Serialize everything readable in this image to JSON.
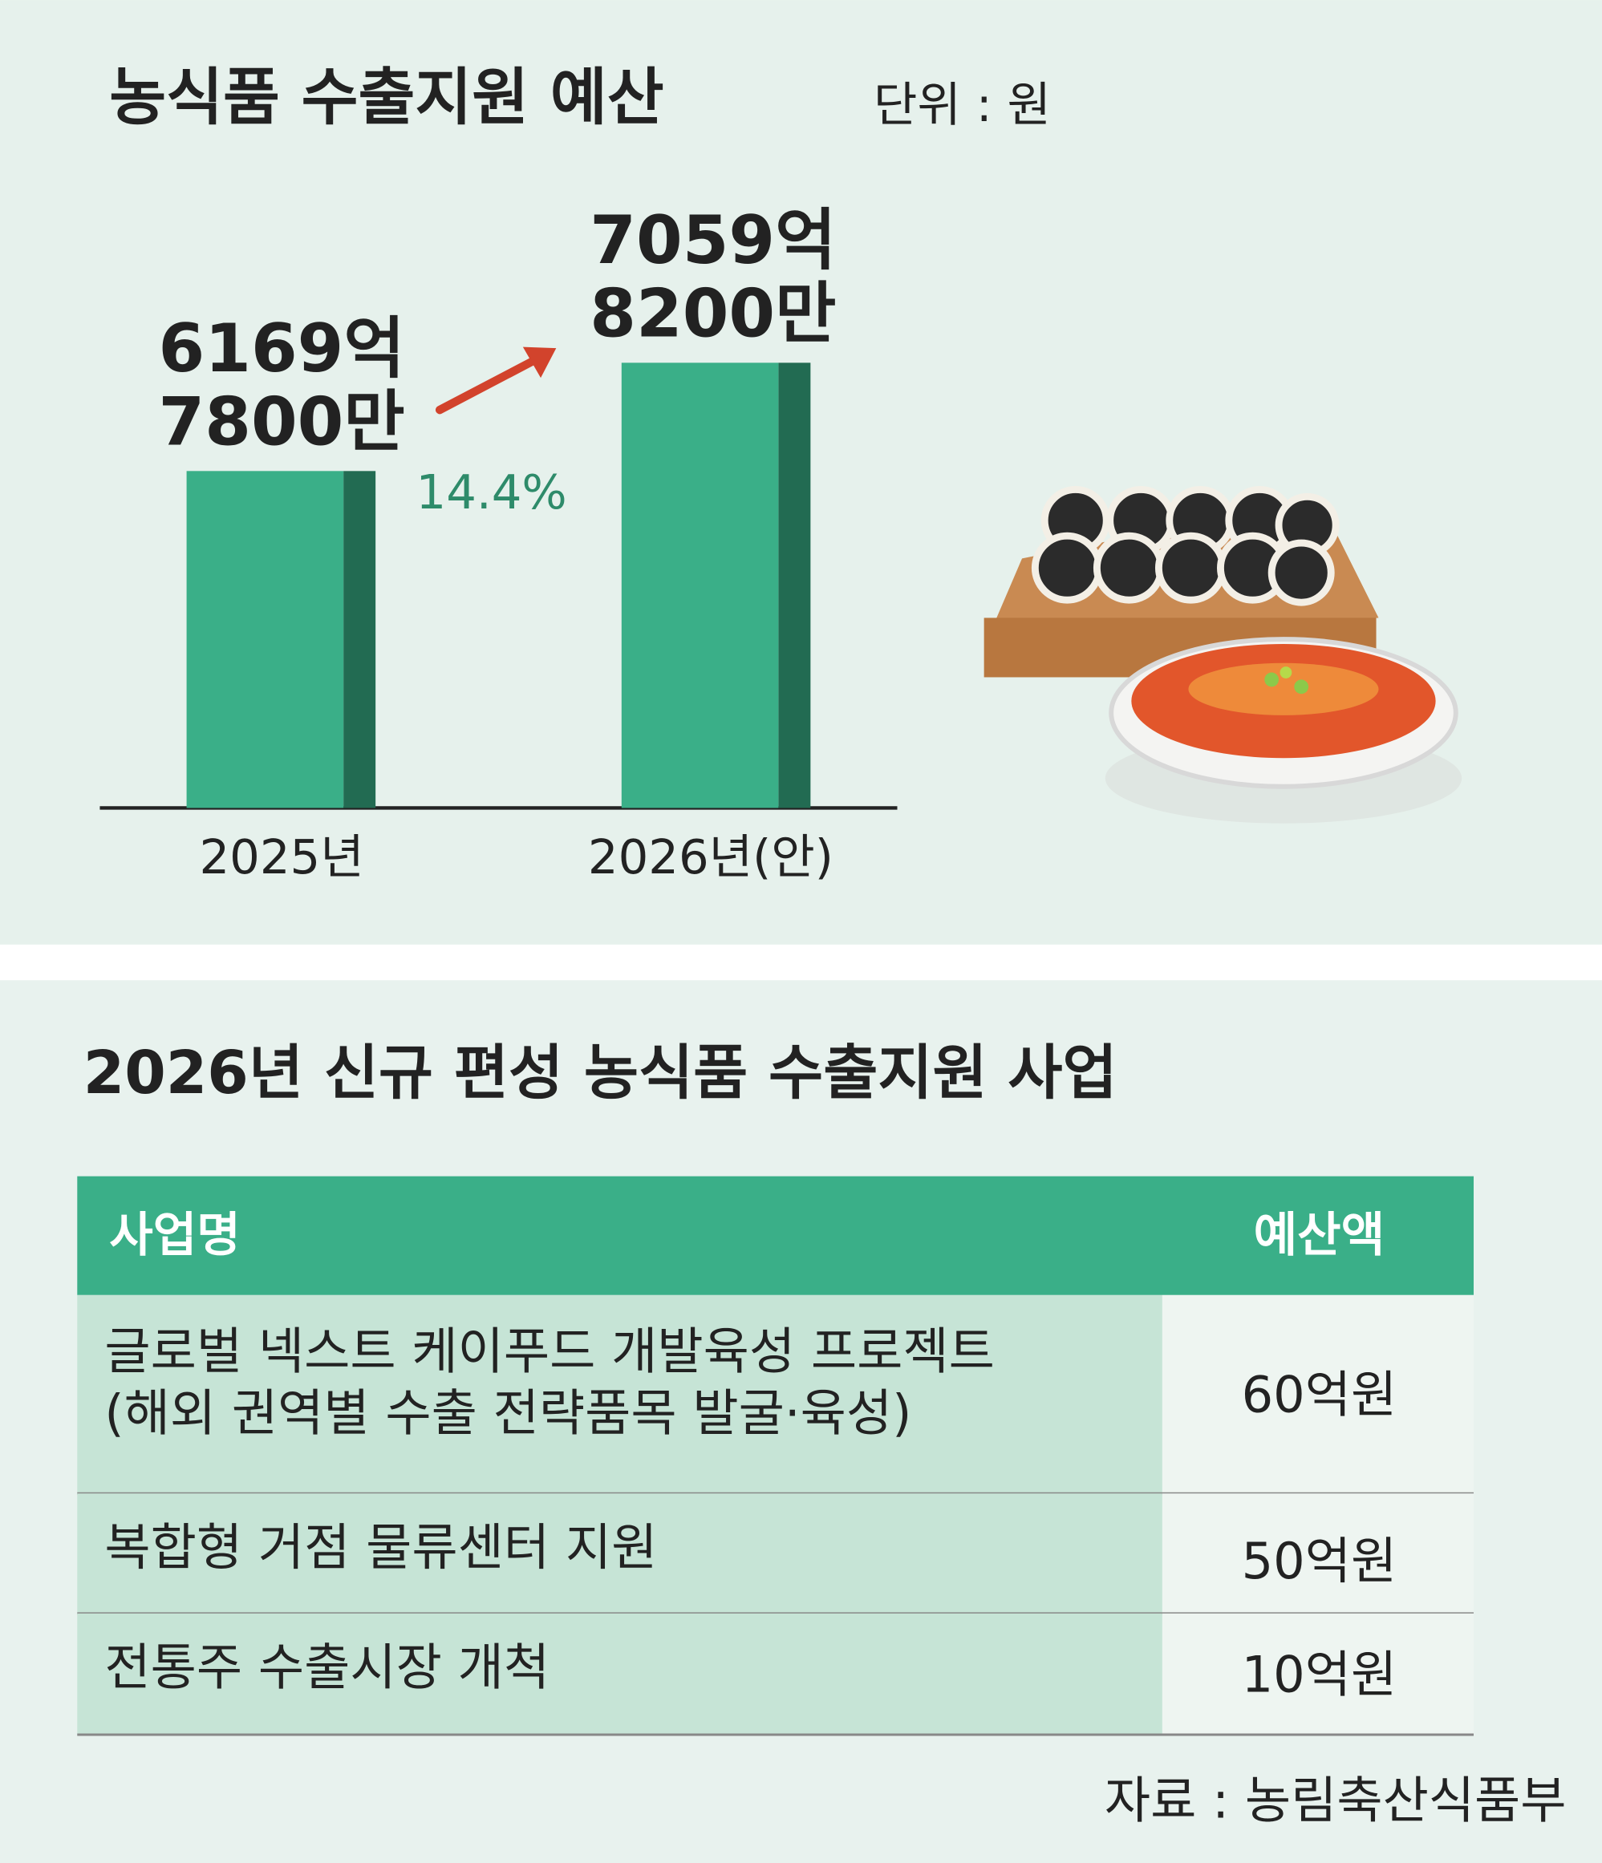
{
  "chart_data": {
    "type": "bar",
    "title": "농식품 수출지원 예산",
    "unit": "단위 : 원",
    "categories": [
      "2025년",
      "2026년(안)"
    ],
    "values": [
      616978000000,
      705982000000
    ],
    "value_labels": [
      [
        "6169억",
        "7800만"
      ],
      [
        "7059억",
        "8200만"
      ]
    ],
    "annotation": "14.4%",
    "color": "#3aaf88",
    "side_color": "#226b52",
    "ylim": [
      340000000000,
      760000000000
    ]
  },
  "table": {
    "title": "2026년 신규 편성 농식품 수출지원 사업",
    "header": [
      "사업명",
      "예산액"
    ],
    "rows": [
      [
        [
          "글로벌 넥스트 케이푸드 개발육성 프로젝트",
          "(해외 권역별 수출 전략품목 발굴·육성)"
        ],
        "60억원"
      ],
      [
        [
          "복합형 거점 물류센터 지원"
        ],
        "50억원"
      ],
      [
        [
          "전통주 수출시장 개척"
        ],
        "10억원"
      ]
    ]
  },
  "source": "자료 : 농림축산식품부"
}
